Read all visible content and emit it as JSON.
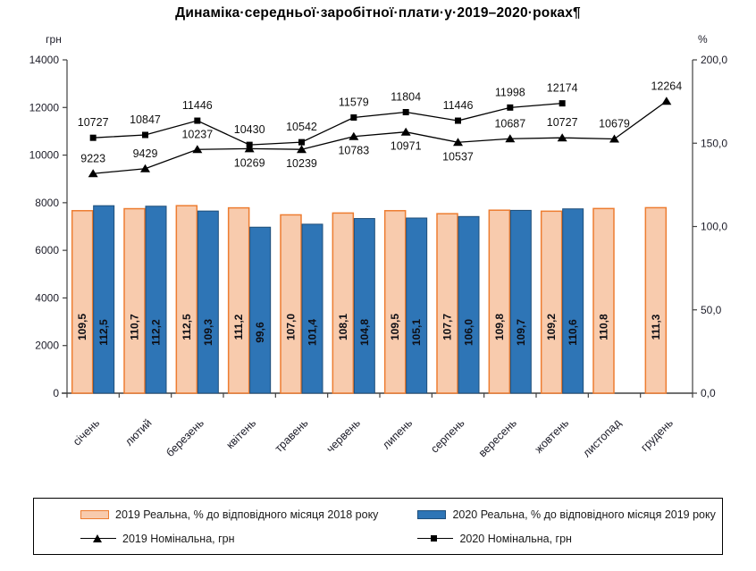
{
  "title": "Динаміка·середньої·заробітної·плати·у·2019–2020·роках¶",
  "chart_data": {
    "type": "combo-bar-line",
    "categories": [
      "січень",
      "лютий",
      "березень",
      "квітень",
      "травень",
      "червень",
      "липень",
      "серпень",
      "вересень",
      "жовтень",
      "листопад",
      "грудень"
    ],
    "left_axis": {
      "unit": "грн",
      "min": 0,
      "max": 14000,
      "step": 2000,
      "tick_labels": [
        "0",
        "2000",
        "4000",
        "6000",
        "8000",
        "10000",
        "12000",
        "14000"
      ]
    },
    "right_axis": {
      "unit": "%",
      "min": 0,
      "max": 200,
      "step": 50,
      "tick_labels": [
        "0,0",
        "50,0",
        "100,0",
        "150,0",
        "200,0"
      ]
    },
    "grid": "off",
    "legend_position": "bottom",
    "series": [
      {
        "name": "2019 Реальна, % до відповідного місяця 2018 року",
        "type": "bar",
        "axis": "right",
        "fill": "#F8CBAD",
        "border": "#ED7D31",
        "values": [
          109.5,
          110.7,
          112.5,
          111.2,
          107.0,
          108.1,
          109.5,
          107.7,
          109.8,
          109.2,
          110.8,
          111.3
        ],
        "value_labels": [
          "109,5",
          "110,7",
          "112,5",
          "111,2",
          "107,0",
          "108,1",
          "109,5",
          "107,7",
          "109,8",
          "109,2",
          "110,8",
          "111,3"
        ]
      },
      {
        "name": "2020 Реальна, % до відповідного місяця 2019 року",
        "type": "bar",
        "axis": "right",
        "fill": "#2E75B6",
        "border": "#1F4E79",
        "values": [
          112.5,
          112.2,
          109.3,
          99.6,
          101.4,
          104.8,
          105.1,
          106.0,
          109.7,
          110.6
        ],
        "value_labels": [
          "112,5",
          "112,2",
          "109,3",
          "99,6",
          "101,4",
          "104,8",
          "105,1",
          "106,0",
          "109,7",
          "110,6"
        ]
      },
      {
        "name": "2019 Номінальна, грн",
        "type": "line",
        "marker": "triangle",
        "axis": "left",
        "color": "#000000",
        "values": [
          9223,
          9429,
          10237,
          10269,
          10239,
          10783,
          10971,
          10537,
          10687,
          10727,
          10679,
          12264
        ],
        "label_side": [
          "above",
          "above",
          "above",
          "below",
          "below",
          "below",
          "below",
          "below",
          "above",
          "above",
          "above",
          "above"
        ]
      },
      {
        "name": "2020 Номінальна, грн",
        "type": "line",
        "marker": "square",
        "axis": "left",
        "color": "#000000",
        "values": [
          10727,
          10847,
          11446,
          10430,
          10542,
          11579,
          11804,
          11446,
          11998,
          12174
        ],
        "label_side": [
          "above",
          "above",
          "above",
          "above",
          "above",
          "above",
          "above",
          "above",
          "above",
          "above"
        ]
      }
    ]
  },
  "legend": {
    "item1": "2019 Реальна, % до відповідного місяця 2018 року",
    "item2": "2020 Реальна, % до відповідного місяця 2019 року",
    "item3": "2019 Номінальна, грн",
    "item4": "2020 Номінальна, грн"
  }
}
